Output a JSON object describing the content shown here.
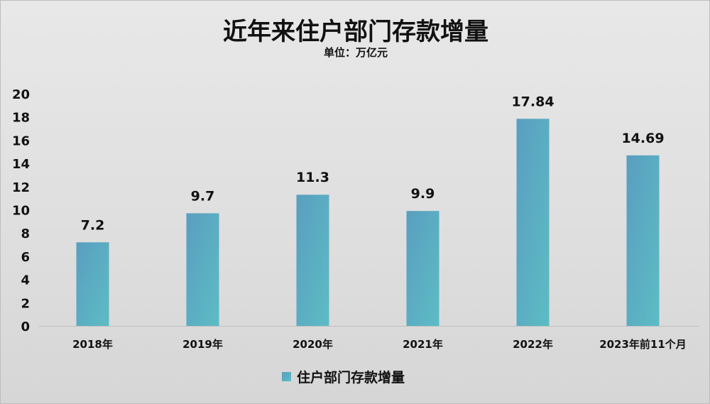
{
  "chart_data": {
    "type": "bar",
    "title": "近年来住户部门存款增量",
    "subtitle": "单位：万亿元",
    "categories": [
      "2018年",
      "2019年",
      "2020年",
      "2021年",
      "2022年",
      "2023年前11个月"
    ],
    "series": [
      {
        "name": "住户部门存款增量",
        "values": [
          7.2,
          9.7,
          11.3,
          9.9,
          17.84,
          14.69
        ]
      }
    ],
    "data_labels": [
      "7.2",
      "9.7",
      "11.3",
      "9.9",
      "17.84",
      "14.69"
    ],
    "ylim": [
      0,
      20
    ],
    "yticks": [
      0,
      2,
      4,
      6,
      8,
      10,
      12,
      14,
      16,
      18,
      20
    ],
    "grid": false,
    "legend_position": "bottom",
    "colors": {
      "bar_top": "#5a9ec0",
      "bar_bottom": "#5cbcc4"
    }
  }
}
